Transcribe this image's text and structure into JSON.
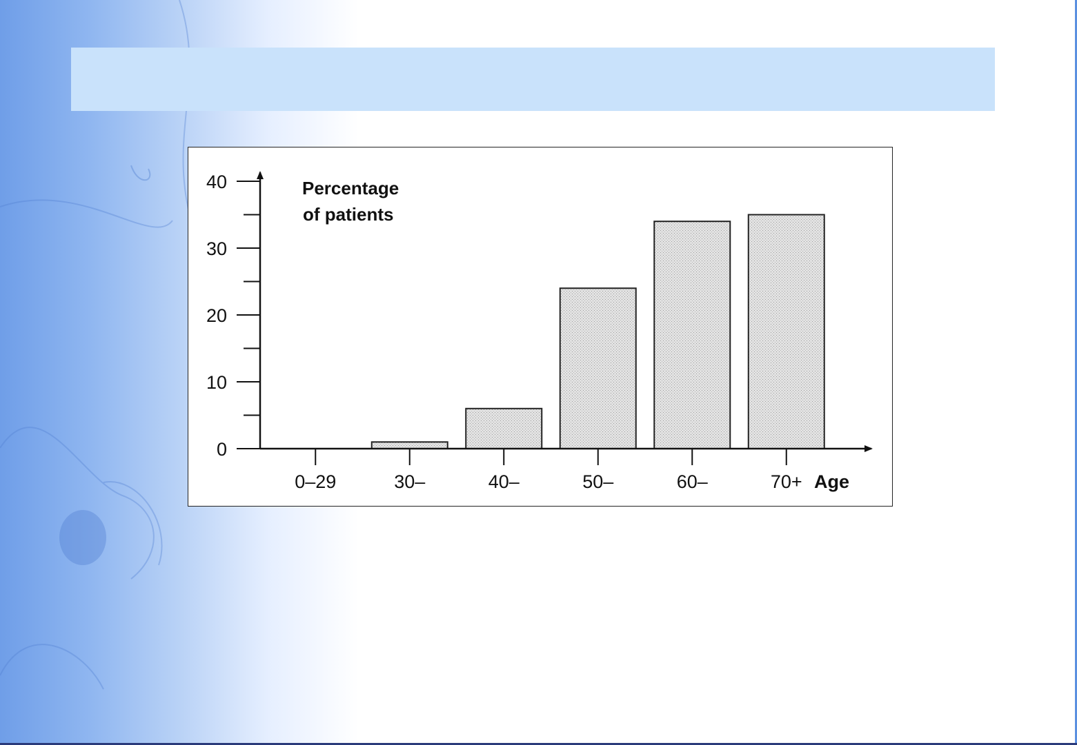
{
  "slide": {
    "title": "",
    "colors": {
      "title_bar": "#c9e2fb",
      "left_gradient": "#6f9ee8",
      "bar_fill": "#d9d9d9"
    }
  },
  "chart_data": {
    "type": "bar",
    "categories": [
      "0–29",
      "30–",
      "40–",
      "50–",
      "60–",
      "70+"
    ],
    "values": [
      0,
      1,
      6,
      24,
      34,
      35
    ],
    "ylabel_line1": "Percentage",
    "ylabel_line2": "of patients",
    "xlabel": "Age",
    "ylim": [
      0,
      40
    ],
    "yticks": [
      0,
      10,
      20,
      30,
      40
    ],
    "minor_ytick_step": 5,
    "grid": false,
    "legend": "none"
  }
}
